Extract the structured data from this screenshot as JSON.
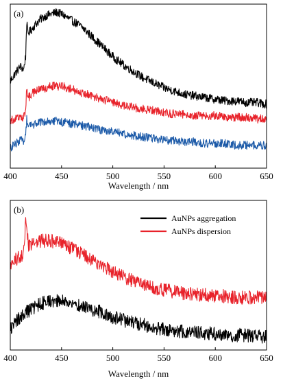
{
  "chart_data": [
    {
      "type": "line",
      "panel_label": "(a)",
      "xlabel": "Wavelength / nm",
      "ylabel": "",
      "xlim": [
        400,
        650
      ],
      "ylim": [
        0,
        100
      ],
      "x_ticks": [
        400,
        450,
        500,
        550,
        600,
        650
      ],
      "y_ticks_shown": false,
      "grid": false,
      "legend": null,
      "series": [
        {
          "color": "#000000",
          "x": [
            400,
            405,
            410,
            413,
            415,
            416,
            417,
            420,
            425,
            430,
            435,
            440,
            445,
            450,
            455,
            460,
            470,
            480,
            490,
            500,
            510,
            520,
            530,
            540,
            550,
            560,
            570,
            580,
            590,
            600,
            610,
            620,
            630,
            640,
            650
          ],
          "y": [
            53,
            58,
            62,
            60,
            68,
            90,
            82,
            84,
            88,
            91,
            93,
            94,
            95,
            94,
            92,
            90,
            86,
            80,
            74,
            68,
            63,
            59,
            55,
            52,
            49,
            47,
            45,
            44,
            43,
            42,
            41,
            41,
            40,
            40,
            39
          ]
        },
        {
          "color": "#e8222a",
          "x": [
            400,
            405,
            410,
            413,
            415,
            416,
            417,
            420,
            425,
            430,
            435,
            440,
            445,
            450,
            455,
            460,
            470,
            480,
            490,
            500,
            510,
            520,
            530,
            540,
            550,
            560,
            570,
            580,
            590,
            600,
            610,
            620,
            630,
            640,
            650
          ],
          "y": [
            29,
            30,
            31,
            31,
            34,
            51,
            42,
            45,
            47,
            48,
            49,
            50,
            50,
            50,
            49,
            48,
            46,
            44,
            42,
            40,
            38,
            37,
            36,
            35,
            34,
            33,
            33,
            32,
            32,
            32,
            31,
            31,
            31,
            30,
            30
          ]
        },
        {
          "color": "#1c5aa8",
          "x": [
            400,
            405,
            410,
            413,
            415,
            416,
            417,
            420,
            425,
            430,
            435,
            440,
            445,
            450,
            455,
            460,
            470,
            480,
            490,
            500,
            510,
            520,
            530,
            540,
            550,
            560,
            570,
            580,
            590,
            600,
            610,
            620,
            630,
            640,
            650
          ],
          "y": [
            12,
            15,
            17,
            17,
            20,
            30,
            24,
            26,
            27,
            28,
            29,
            29,
            29,
            28,
            28,
            27,
            26,
            25,
            23,
            22,
            21,
            20,
            19,
            18,
            17,
            17,
            16,
            16,
            15,
            15,
            15,
            14,
            14,
            14,
            14
          ]
        }
      ]
    },
    {
      "type": "line",
      "panel_label": "(b)",
      "xlabel": "Wavelength / nm",
      "ylabel": "",
      "xlim": [
        400,
        650
      ],
      "ylim": [
        0,
        100
      ],
      "x_ticks": [
        400,
        450,
        500,
        550,
        600,
        650
      ],
      "y_ticks_shown": false,
      "grid": false,
      "legend": "top-right",
      "series": [
        {
          "name": "AuNPs aggregation",
          "color": "#000000",
          "x": [
            400,
            405,
            410,
            415,
            420,
            425,
            430,
            435,
            440,
            445,
            450,
            455,
            460,
            470,
            480,
            490,
            500,
            510,
            520,
            530,
            540,
            550,
            560,
            570,
            580,
            590,
            600,
            610,
            620,
            630,
            640,
            650
          ],
          "y": [
            14,
            18,
            22,
            25,
            27,
            29,
            31,
            32,
            33,
            33,
            33,
            32,
            31,
            29,
            27,
            25,
            22,
            20,
            18,
            17,
            15,
            14,
            13,
            12,
            12,
            11,
            11,
            10,
            10,
            10,
            9,
            9
          ]
        },
        {
          "name": "AuNPs dispersion",
          "color": "#e8222a",
          "x": [
            400,
            405,
            410,
            413,
            414,
            415,
            416,
            418,
            420,
            425,
            430,
            435,
            440,
            445,
            450,
            455,
            460,
            470,
            480,
            490,
            500,
            510,
            520,
            530,
            540,
            550,
            560,
            570,
            580,
            590,
            600,
            610,
            620,
            630,
            640,
            650
          ],
          "y": [
            56,
            60,
            63,
            64,
            72,
            90,
            78,
            70,
            71,
            72,
            73,
            73,
            73,
            72,
            71,
            70,
            68,
            64,
            60,
            56,
            52,
            49,
            46,
            44,
            42,
            40,
            39,
            38,
            37,
            37,
            36,
            36,
            35,
            35,
            35,
            35
          ]
        }
      ]
    }
  ]
}
